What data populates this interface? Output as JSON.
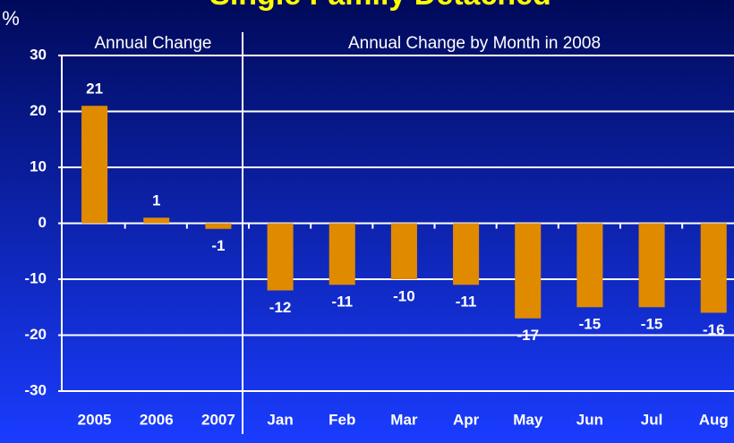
{
  "chart_data": {
    "type": "bar",
    "title": "Single Family Detached",
    "y_label": "%",
    "annotations": [
      "Annual Change",
      "Annual Change by Month in 2008"
    ],
    "categories": [
      "2005",
      "2006",
      "2007",
      "Jan",
      "Feb",
      "Mar",
      "Apr",
      "May",
      "Jun",
      "Jul",
      "Aug"
    ],
    "values": [
      21,
      1,
      -1,
      -12,
      -11,
      -10,
      -11,
      -17,
      -15,
      -15,
      -16
    ],
    "color": "#e08a00",
    "ylim": [
      -30,
      30
    ],
    "yticks": [
      -30,
      -20,
      -10,
      0,
      10,
      20,
      30
    ],
    "grid": true
  }
}
